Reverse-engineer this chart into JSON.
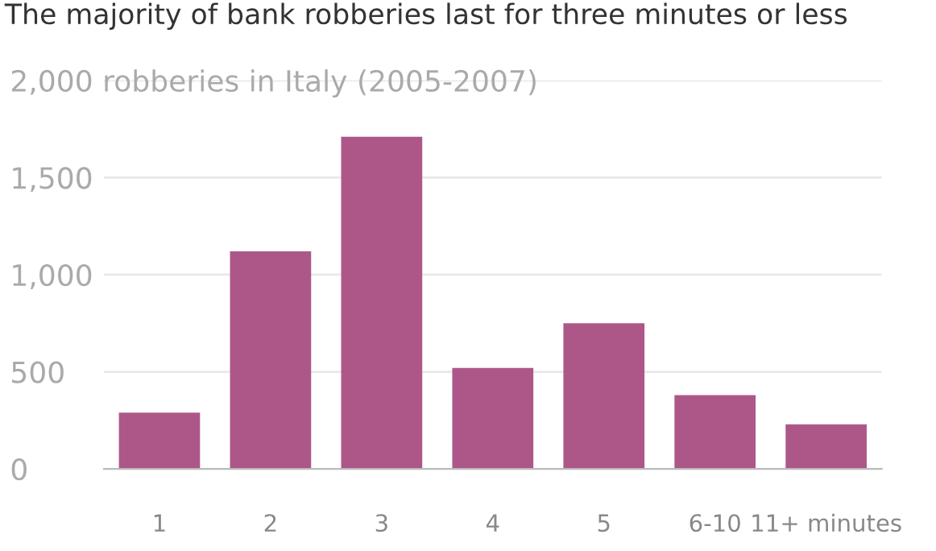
{
  "chart_data": {
    "type": "bar",
    "title": "The majority of bank robberies last for three minutes or less",
    "categories": [
      "1",
      "2",
      "3",
      "4",
      "5",
      "6-10",
      "11+ minutes"
    ],
    "values": [
      290,
      1120,
      1710,
      520,
      750,
      380,
      230
    ],
    "color": "#ad5789",
    "ylim": [
      0,
      2000
    ],
    "yticks": [
      0,
      {
        "value": 500,
        "label": "500"
      },
      {
        "value": 1000,
        "label": "1,000"
      },
      {
        "value": 1500,
        "label": "1,500"
      },
      {
        "value": 2000,
        "label": "2,000 robberies in Italy (2005-2007)"
      }
    ],
    "grid": "y"
  }
}
